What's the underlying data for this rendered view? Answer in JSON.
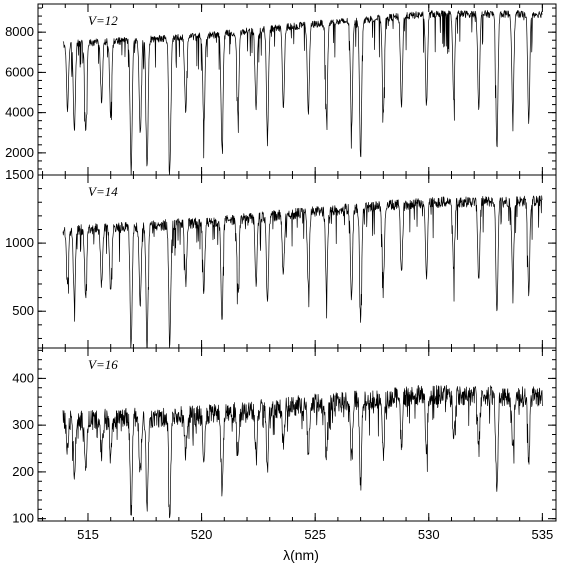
{
  "chart_data": {
    "type": "line",
    "xlabel": "λ(nm)",
    "xlim": [
      512.8,
      535.6
    ],
    "xticks": [
      515,
      520,
      525,
      530,
      535
    ],
    "grid": false,
    "legend": "none",
    "line_color": "#000000",
    "shared_x": true,
    "panels": [
      {
        "name": "V=12",
        "ylim": [
          900,
          9400
        ],
        "yticks": [
          2000,
          4000,
          6000,
          8000
        ],
        "continuum": [
          [
            513.9,
            7400
          ],
          [
            520,
            7800
          ],
          [
            525,
            8400
          ],
          [
            530,
            8900
          ],
          [
            535.0,
            8900
          ]
        ],
        "noise": 180,
        "absorption_lines": [
          {
            "x": 514.1,
            "y": 4200
          },
          {
            "x": 514.4,
            "y": 3100
          },
          {
            "x": 514.9,
            "y": 3000
          },
          {
            "x": 515.6,
            "y": 4600
          },
          {
            "x": 516.0,
            "y": 3900
          },
          {
            "x": 516.9,
            "y": 1100
          },
          {
            "x": 517.3,
            "y": 2900
          },
          {
            "x": 517.6,
            "y": 1200
          },
          {
            "x": 518.6,
            "y": 1100
          },
          {
            "x": 519.3,
            "y": 4100
          },
          {
            "x": 520.1,
            "y": 3300
          },
          {
            "x": 520.9,
            "y": 2200
          },
          {
            "x": 521.6,
            "y": 3900
          },
          {
            "x": 522.4,
            "y": 4200
          },
          {
            "x": 522.9,
            "y": 2800
          },
          {
            "x": 523.6,
            "y": 4300
          },
          {
            "x": 524.7,
            "y": 4000
          },
          {
            "x": 525.5,
            "y": 3700
          },
          {
            "x": 526.6,
            "y": 3200
          },
          {
            "x": 527.0,
            "y": 1700
          },
          {
            "x": 528.0,
            "y": 3900
          },
          {
            "x": 528.8,
            "y": 4300
          },
          {
            "x": 529.9,
            "y": 4400
          },
          {
            "x": 531.1,
            "y": 4700
          },
          {
            "x": 532.2,
            "y": 4300
          },
          {
            "x": 533.0,
            "y": 2200
          },
          {
            "x": 533.7,
            "y": 4000
          },
          {
            "x": 534.4,
            "y": 3600
          }
        ]
      },
      {
        "name": "V=14",
        "ylim": [
          230,
          1500
        ],
        "yticks": [
          500,
          1000,
          1500
        ],
        "continuum": [
          [
            513.9,
            1090
          ],
          [
            520,
            1150
          ],
          [
            525,
            1230
          ],
          [
            530,
            1300
          ],
          [
            535.0,
            1310
          ]
        ],
        "noise": 40,
        "absorption_lines": [
          {
            "x": 514.1,
            "y": 720
          },
          {
            "x": 514.4,
            "y": 570
          },
          {
            "x": 514.9,
            "y": 610
          },
          {
            "x": 515.6,
            "y": 690
          },
          {
            "x": 516.0,
            "y": 640
          },
          {
            "x": 516.9,
            "y": 260
          },
          {
            "x": 517.3,
            "y": 560
          },
          {
            "x": 517.6,
            "y": 250
          },
          {
            "x": 518.6,
            "y": 260
          },
          {
            "x": 519.3,
            "y": 700
          },
          {
            "x": 520.1,
            "y": 640
          },
          {
            "x": 520.9,
            "y": 450
          },
          {
            "x": 521.6,
            "y": 690
          },
          {
            "x": 522.4,
            "y": 720
          },
          {
            "x": 522.9,
            "y": 540
          },
          {
            "x": 523.6,
            "y": 760
          },
          {
            "x": 524.7,
            "y": 690
          },
          {
            "x": 525.5,
            "y": 650
          },
          {
            "x": 526.6,
            "y": 600
          },
          {
            "x": 527.0,
            "y": 450
          },
          {
            "x": 528.0,
            "y": 700
          },
          {
            "x": 528.8,
            "y": 760
          },
          {
            "x": 529.9,
            "y": 740
          },
          {
            "x": 531.1,
            "y": 800
          },
          {
            "x": 532.2,
            "y": 730
          },
          {
            "x": 533.0,
            "y": 510
          },
          {
            "x": 533.7,
            "y": 700
          },
          {
            "x": 534.4,
            "y": 650
          }
        ]
      },
      {
        "name": "V=16",
        "ylim": [
          95,
          465
        ],
        "yticks": [
          100,
          200,
          300,
          400
        ],
        "continuum": [
          [
            513.9,
            310
          ],
          [
            520,
            320
          ],
          [
            525,
            345
          ],
          [
            530,
            365
          ],
          [
            535.0,
            360
          ]
        ],
        "noise": 22,
        "absorption_lines": [
          {
            "x": 514.1,
            "y": 250
          },
          {
            "x": 514.4,
            "y": 195
          },
          {
            "x": 514.9,
            "y": 215
          },
          {
            "x": 515.6,
            "y": 235
          },
          {
            "x": 516.0,
            "y": 230
          },
          {
            "x": 516.9,
            "y": 115
          },
          {
            "x": 517.3,
            "y": 190
          },
          {
            "x": 517.6,
            "y": 115
          },
          {
            "x": 518.6,
            "y": 115
          },
          {
            "x": 519.3,
            "y": 240
          },
          {
            "x": 520.1,
            "y": 215
          },
          {
            "x": 520.9,
            "y": 165
          },
          {
            "x": 521.6,
            "y": 230
          },
          {
            "x": 522.4,
            "y": 240
          },
          {
            "x": 522.9,
            "y": 200
          },
          {
            "x": 523.6,
            "y": 255
          },
          {
            "x": 524.7,
            "y": 240
          },
          {
            "x": 525.5,
            "y": 235
          },
          {
            "x": 526.6,
            "y": 225
          },
          {
            "x": 527.0,
            "y": 180
          },
          {
            "x": 528.0,
            "y": 240
          },
          {
            "x": 528.8,
            "y": 260
          },
          {
            "x": 529.9,
            "y": 255
          },
          {
            "x": 531.1,
            "y": 270
          },
          {
            "x": 532.2,
            "y": 250
          },
          {
            "x": 533.0,
            "y": 148
          },
          {
            "x": 533.7,
            "y": 240
          },
          {
            "x": 534.4,
            "y": 230
          }
        ]
      }
    ]
  }
}
